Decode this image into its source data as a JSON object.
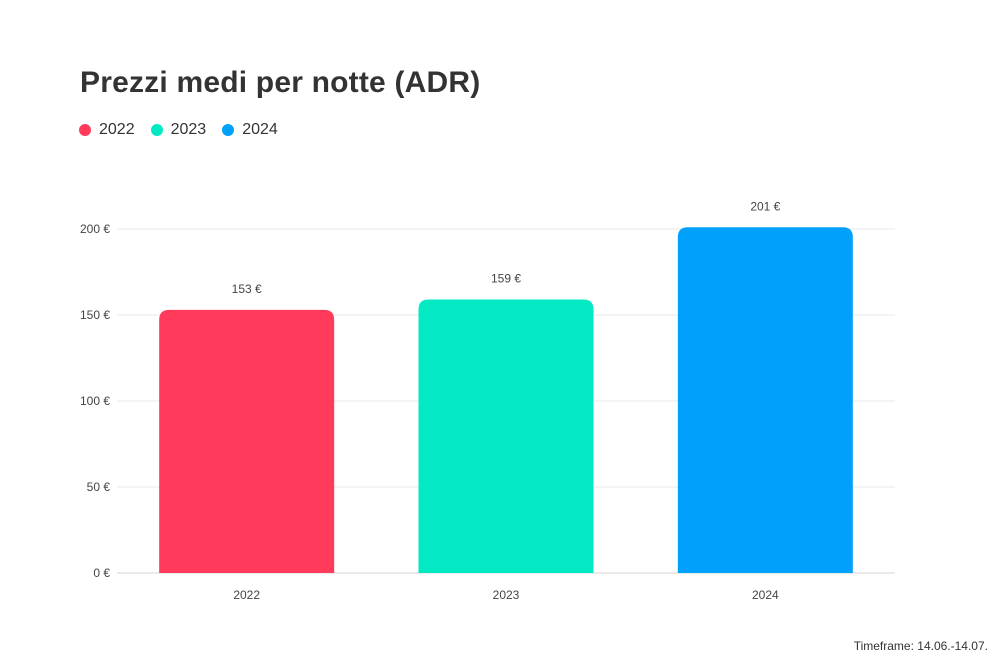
{
  "chart_data": {
    "type": "bar",
    "title": "Prezzi medi per notte (ADR)",
    "categories": [
      "2022",
      "2023",
      "2024"
    ],
    "values": [
      153,
      159,
      201
    ],
    "data_labels": [
      "153 €",
      "159 €",
      "201 €"
    ],
    "colors": [
      "#ff3a5a",
      "#03e9c4",
      "#00a0fb"
    ],
    "legend": [
      {
        "label": "2022",
        "color": "#ff3a5a"
      },
      {
        "label": "2023",
        "color": "#03e9c4"
      },
      {
        "label": "2024",
        "color": "#00a0fb"
      }
    ],
    "legend_position": "top-left",
    "ylim": [
      0,
      200
    ],
    "yticks": [
      0,
      50,
      100,
      150,
      200
    ],
    "ytick_labels": [
      "0 €",
      "50 €",
      "100 €",
      "150 €",
      "200 €"
    ],
    "xlabel": "",
    "ylabel": "",
    "grid": true
  },
  "footnote": "Timeframe: 14.06.-14.07."
}
